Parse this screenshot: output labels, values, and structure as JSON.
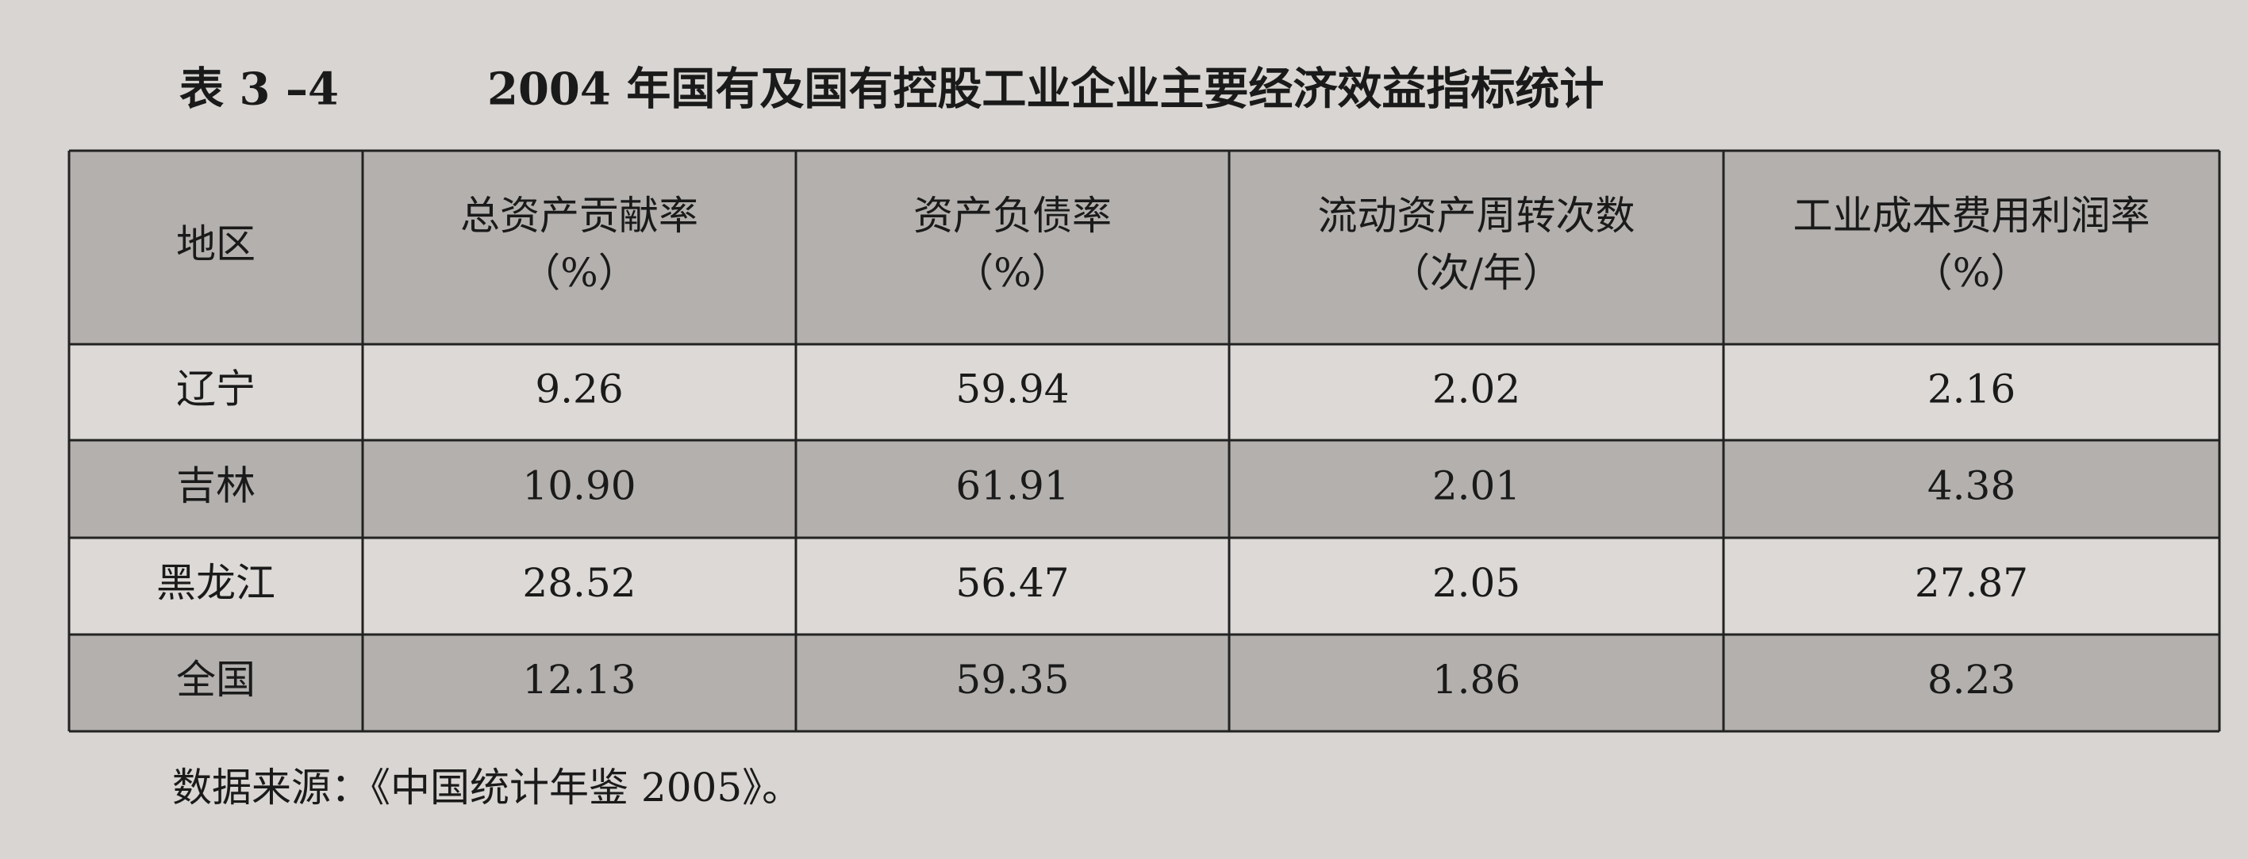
{
  "header": {
    "label": "表 3 –4",
    "title": "2004 年国有及国有控股工业企业主要经济效益指标统计"
  },
  "table": {
    "columns": [
      [
        "地区"
      ],
      [
        "总资产贡献率",
        "（%）"
      ],
      [
        "资产负债率",
        "（%）"
      ],
      [
        "流动资产周转次数",
        "（次/年）"
      ],
      [
        "工业成本费用利润率",
        "（%）"
      ]
    ],
    "rows": [
      [
        "辽宁",
        "9.26",
        "59.94",
        "2.02",
        "2.16"
      ],
      [
        "吉林",
        "10.90",
        "61.91",
        "2.01",
        "4.38"
      ],
      [
        "黑龙江",
        "28.52",
        "56.47",
        "2.05",
        "27.87"
      ],
      [
        "全国",
        "12.13",
        "59.35",
        "1.86",
        "8.23"
      ]
    ]
  },
  "footnote": "数据来源：《中国统计年鉴 2005》。"
}
